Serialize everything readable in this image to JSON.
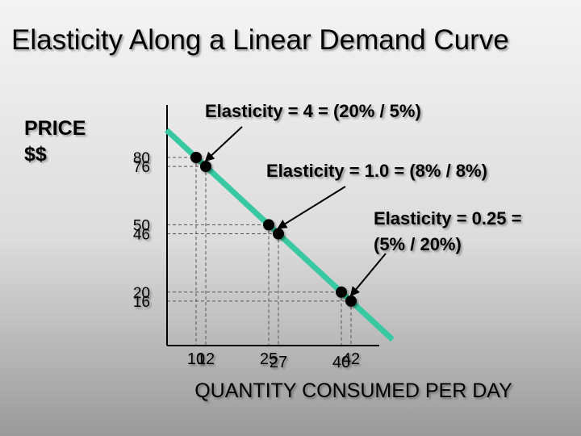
{
  "title": "Elasticity Along a Linear Demand Curve",
  "y_axis_label": [
    "PRICE",
    "$$"
  ],
  "x_axis_label": "QUANTITY CONSUMED PER DAY",
  "colors": {
    "curve": "#38c9a3",
    "axis": "#000000",
    "gridline": "#555555",
    "point": "#000000"
  },
  "chart_data": {
    "type": "line",
    "title": "Elasticity Along a Linear Demand Curve",
    "xlabel": "QUANTITY CONSUMED PER DAY",
    "ylabel": "PRICE $$",
    "grid": false,
    "y_ticks": [
      "80",
      "76",
      "50",
      "46",
      "20",
      "16"
    ],
    "x_ticks": [
      "10",
      "12",
      "25",
      "27",
      "40",
      "42"
    ],
    "points": [
      {
        "x": 10,
        "y": 80
      },
      {
        "x": 12,
        "y": 76
      },
      {
        "x": 25,
        "y": 50
      },
      {
        "x": 27,
        "y": 46
      },
      {
        "x": 40,
        "y": 20
      },
      {
        "x": 42,
        "y": 16
      }
    ],
    "annotations": [
      {
        "lines": [
          "Elasticity = 4 = (20% / 5%)"
        ],
        "target_x": 10,
        "target_y": 80
      },
      {
        "lines": [
          "Elasticity = 1.0 = (8% / 8%)"
        ],
        "target_x": 25,
        "target_y": 50
      },
      {
        "lines": [
          "Elasticity = 0.25 =",
          "(5% / 20%)"
        ],
        "target_x": 40,
        "target_y": 20
      }
    ]
  }
}
